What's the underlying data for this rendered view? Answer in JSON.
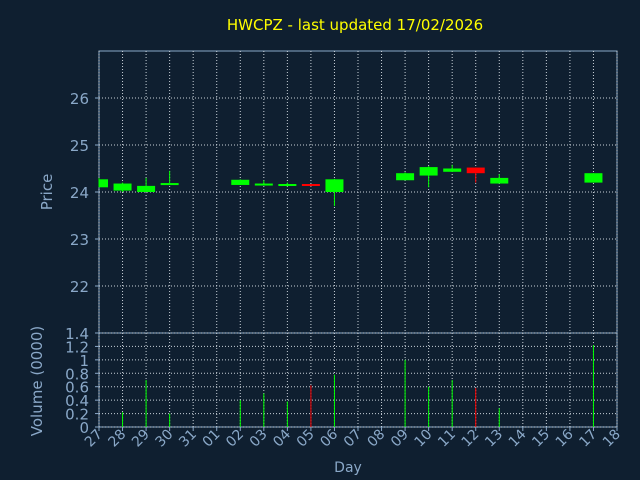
{
  "chart_data": [
    {
      "type": "candlestick",
      "title": "HWCPZ - last updated 17/02/2026",
      "ylabel": "Price",
      "ylim": [
        21,
        27
      ],
      "yticks": [
        22,
        23,
        24,
        25,
        26
      ],
      "grid": true,
      "x": [
        "27",
        "28",
        "29",
        "30",
        "31",
        "01",
        "02",
        "03",
        "04",
        "05",
        "06",
        "07",
        "08",
        "09",
        "10",
        "11",
        "12",
        "13",
        "14",
        "15",
        "16",
        "17",
        "18"
      ],
      "candles": [
        {
          "x": "27",
          "open": 24.1,
          "high": 24.3,
          "low": 24.1,
          "close": 24.27
        },
        {
          "x": "28",
          "open": 24.03,
          "high": 24.2,
          "low": 24.0,
          "close": 24.18
        },
        {
          "x": "29",
          "open": 24.0,
          "high": 24.3,
          "low": 24.0,
          "close": 24.13
        },
        {
          "x": "30",
          "open": 24.17,
          "high": 24.45,
          "low": 24.15,
          "close": 24.19
        },
        {
          "x": "02",
          "open": 24.15,
          "high": 24.27,
          "low": 24.15,
          "close": 24.26
        },
        {
          "x": "03",
          "open": 24.14,
          "high": 24.25,
          "low": 24.14,
          "close": 24.18
        },
        {
          "x": "04",
          "open": 24.13,
          "high": 24.2,
          "low": 24.12,
          "close": 24.17
        },
        {
          "x": "05",
          "open": 24.17,
          "high": 24.17,
          "low": 24.12,
          "close": 24.13
        },
        {
          "x": "06",
          "open": 24.0,
          "high": 24.28,
          "low": 23.7,
          "close": 24.27
        },
        {
          "x": "09",
          "open": 24.25,
          "high": 24.42,
          "low": 24.25,
          "close": 24.4
        },
        {
          "x": "10",
          "open": 24.35,
          "high": 24.55,
          "low": 24.1,
          "close": 24.53
        },
        {
          "x": "11",
          "open": 24.43,
          "high": 24.58,
          "low": 24.43,
          "close": 24.5
        },
        {
          "x": "12",
          "open": 24.52,
          "high": 24.52,
          "low": 24.2,
          "close": 24.4
        },
        {
          "x": "13",
          "open": 24.18,
          "high": 24.38,
          "low": 24.18,
          "close": 24.3
        },
        {
          "x": "17",
          "open": 24.2,
          "high": 24.4,
          "low": 24.2,
          "close": 24.4
        }
      ]
    },
    {
      "type": "bar",
      "ylabel": "Volume (0000)",
      "xlabel": "Day",
      "ylim": [
        0,
        1.4
      ],
      "yticks": [
        "0",
        "0.2",
        "0.4",
        "0.6",
        "0.8",
        "1",
        "1.2",
        "1.4"
      ],
      "grid": true,
      "categories": [
        "27",
        "28",
        "29",
        "30",
        "31",
        "01",
        "02",
        "03",
        "04",
        "05",
        "06",
        "07",
        "08",
        "09",
        "10",
        "11",
        "12",
        "13",
        "14",
        "15",
        "16",
        "17",
        "18"
      ],
      "bars": [
        {
          "x": "28",
          "value": 0.22,
          "direction": "up"
        },
        {
          "x": "29",
          "value": 0.7,
          "direction": "up"
        },
        {
          "x": "30",
          "value": 0.2,
          "direction": "up"
        },
        {
          "x": "02",
          "value": 0.4,
          "direction": "up"
        },
        {
          "x": "03",
          "value": 0.5,
          "direction": "up"
        },
        {
          "x": "04",
          "value": 0.38,
          "direction": "up"
        },
        {
          "x": "05",
          "value": 0.62,
          "direction": "down"
        },
        {
          "x": "06",
          "value": 0.78,
          "direction": "up"
        },
        {
          "x": "09",
          "value": 1.0,
          "direction": "up"
        },
        {
          "x": "10",
          "value": 0.6,
          "direction": "up"
        },
        {
          "x": "11",
          "value": 0.7,
          "direction": "up"
        },
        {
          "x": "12",
          "value": 0.58,
          "direction": "down"
        },
        {
          "x": "13",
          "value": 0.28,
          "direction": "up"
        },
        {
          "x": "17",
          "value": 1.22,
          "direction": "up"
        }
      ]
    }
  ],
  "colors": {
    "background": "#0f1f30",
    "title": "#ffff00",
    "axis_text": "#8aa8c8",
    "grid": "#c8d0d8",
    "up": "#00ff00",
    "down": "#ff0000"
  }
}
